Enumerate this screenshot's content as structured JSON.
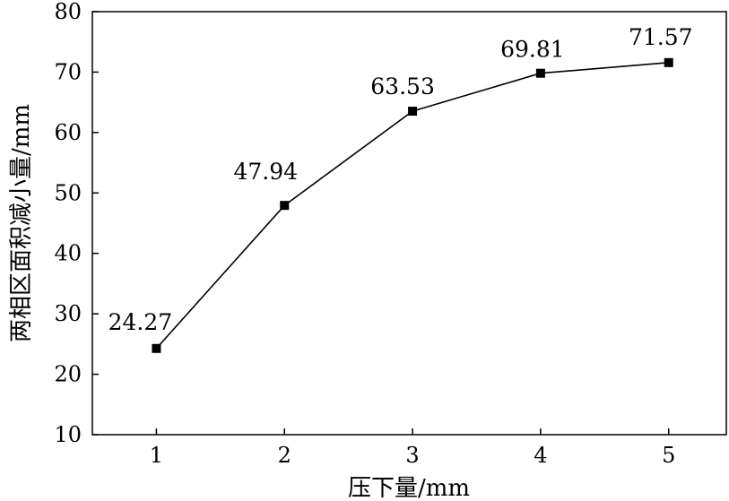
{
  "chart_data": {
    "type": "line",
    "title": "",
    "xlabel": "压下量/mm",
    "ylabel": "两相区面积减小量/mm",
    "x": [
      1,
      2,
      3,
      4,
      5
    ],
    "series": [
      {
        "values": [
          24.27,
          47.94,
          63.53,
          69.81,
          71.57
        ]
      }
    ],
    "data_labels": [
      "24.27",
      "47.94",
      "63.53",
      "69.81",
      "71.57"
    ],
    "xticks": [
      "1",
      "2",
      "3",
      "4",
      "5"
    ],
    "yticks": [
      "10",
      "20",
      "30",
      "40",
      "50",
      "60",
      "70",
      "80"
    ],
    "xlim": [
      0.5,
      5.45
    ],
    "ylim": [
      10,
      80
    ],
    "grid": false,
    "marker": "square",
    "line_color": "#000000"
  }
}
